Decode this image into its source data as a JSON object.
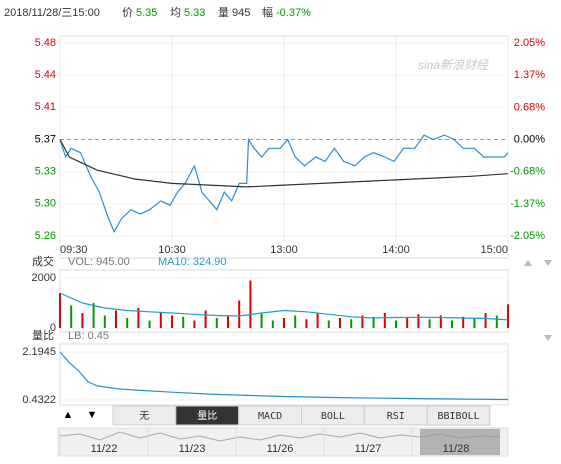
{
  "header": {
    "datetime": "2018/11/28/三15:00",
    "price_label": "价",
    "price": 5.35,
    "avg_label": "均",
    "avg": 5.33,
    "volume_label": "量",
    "volume": 945,
    "amplitude_label": "幅",
    "amplitude": "-0.37%"
  },
  "watermark": "sina新浪财经",
  "chart_data": [
    {
      "type": "line",
      "xlim": [
        0,
        240
      ],
      "xticks": [
        {
          "value": 0,
          "label": "09:30"
        },
        {
          "value": 60,
          "label": "10:30"
        },
        {
          "value": 120,
          "label": "13:00"
        },
        {
          "value": 180,
          "label": "14:00"
        },
        {
          "value": 240,
          "label": "15:00"
        }
      ],
      "ylim": [
        5.26,
        5.48
      ],
      "yticks": [
        5.48,
        {
          "value": 5.4433,
          "label": "5.44"
        },
        {
          "value": 5.4067,
          "label": "5.41"
        },
        5.37,
        {
          "value": 5.3333,
          "label": "5.33"
        },
        {
          "value": 5.2967,
          "label": "5.30"
        },
        5.26
      ],
      "y2lim": [
        -2.05,
        2.05
      ],
      "y2ticks": [
        {
          "value": 2.05,
          "label": "2.05%"
        },
        {
          "value": 1.37,
          "label": "1.37%"
        },
        {
          "value": 0.68,
          "label": "0.68%"
        },
        {
          "value": 0,
          "label": "0.00%"
        },
        {
          "value": -0.68,
          "label": "-0.68%"
        },
        {
          "value": -1.37,
          "label": "-1.37%"
        },
        {
          "value": -2.05,
          "label": "-2.05%"
        }
      ],
      "up_color": "#e00000",
      "down_color": "#009900",
      "flat_color": "#000000",
      "series": [
        {
          "color": "#2a8fd0",
          "x": [
            0,
            3,
            6,
            11,
            16,
            21,
            26,
            29,
            33,
            38,
            43,
            48,
            54,
            59,
            63,
            67,
            72,
            76,
            80,
            84,
            88,
            92,
            96,
            100,
            101,
            104,
            108,
            112,
            118,
            122,
            126,
            131,
            137,
            142,
            147,
            152,
            158,
            163,
            168,
            174,
            179,
            184,
            190,
            195,
            200,
            206,
            211,
            216,
            222,
            227,
            232,
            238,
            240
          ],
          "values": [
            5.37,
            5.35,
            5.36,
            5.355,
            5.33,
            5.31,
            5.28,
            5.265,
            5.28,
            5.29,
            5.285,
            5.29,
            5.3,
            5.295,
            5.31,
            5.32,
            5.34,
            5.31,
            5.3,
            5.29,
            5.31,
            5.3,
            5.32,
            5.32,
            5.37,
            5.36,
            5.35,
            5.36,
            5.36,
            5.37,
            5.35,
            5.34,
            5.35,
            5.345,
            5.36,
            5.345,
            5.34,
            5.35,
            5.355,
            5.35,
            5.345,
            5.36,
            5.36,
            5.375,
            5.37,
            5.375,
            5.37,
            5.36,
            5.36,
            5.35,
            5.35,
            5.35,
            5.355
          ]
        },
        {
          "color": "#333333",
          "x": [
            0,
            5,
            10,
            20,
            40,
            60,
            80,
            100,
            120,
            140,
            160,
            180,
            200,
            220,
            240
          ],
          "values": [
            5.37,
            5.35,
            5.345,
            5.335,
            5.325,
            5.32,
            5.318,
            5.316,
            5.318,
            5.32,
            5.322,
            5.324,
            5.326,
            5.328,
            5.331
          ]
        }
      ]
    },
    {
      "type": "bar",
      "title": "成交",
      "annotations": [
        "VOL: 945.00",
        "MA10: 324.90"
      ],
      "ylim": [
        0,
        2000
      ],
      "yticks": [
        0,
        2000
      ],
      "series": [
        {
          "type": "bar",
          "x": [
            0,
            6,
            12,
            18,
            24,
            30,
            36,
            42,
            48,
            54,
            60,
            66,
            72,
            78,
            84,
            90,
            96,
            102,
            108,
            114,
            120,
            126,
            132,
            138,
            144,
            150,
            156,
            162,
            168,
            174,
            180,
            186,
            192,
            198,
            204,
            210,
            216,
            222,
            228,
            234,
            240
          ],
          "values": [
            1400,
            900,
            600,
            1000,
            500,
            700,
            400,
            800,
            300,
            600,
            500,
            450,
            300,
            700,
            400,
            500,
            1100,
            1900,
            600,
            300,
            400,
            500,
            350,
            600,
            300,
            400,
            350,
            500,
            450,
            600,
            300,
            400,
            550,
            350,
            500,
            300,
            450,
            400,
            600,
            500,
            945
          ],
          "colors": [
            "#e00000",
            "#009900",
            "#e00000",
            "#009900",
            "#009900",
            "#e00000",
            "#009900",
            "#e00000",
            "#009900",
            "#e00000",
            "#e00000",
            "#009900",
            "#e00000",
            "#e00000",
            "#009900",
            "#e00000",
            "#e00000",
            "#e00000",
            "#009900",
            "#009900",
            "#e00000",
            "#009900",
            "#e00000",
            "#e00000",
            "#009900",
            "#e00000",
            "#009900",
            "#e00000",
            "#009900",
            "#e00000",
            "#009900",
            "#e00000",
            "#e00000",
            "#009900",
            "#e00000",
            "#009900",
            "#e00000",
            "#009900",
            "#e00000",
            "#009900",
            "#e00000"
          ]
        },
        {
          "type": "line",
          "color": "#1aa0c8",
          "x": [
            0,
            12,
            24,
            36,
            48,
            60,
            72,
            84,
            96,
            108,
            120,
            132,
            144,
            156,
            168,
            180,
            192,
            204,
            216,
            228,
            240
          ],
          "values": [
            1400,
            1000,
            800,
            700,
            650,
            600,
            550,
            500,
            480,
            600,
            700,
            650,
            550,
            450,
            400,
            420,
            430,
            420,
            400,
            380,
            324.9
          ]
        }
      ]
    },
    {
      "type": "line",
      "title": "量比",
      "annotations": [
        "LB: 0.45"
      ],
      "ylim": [
        0.4322,
        2.1945
      ],
      "yticks": [
        0.4322,
        2.1945
      ],
      "series": [
        {
          "color": "#2a8fd0",
          "x": [
            0,
            5,
            10,
            15,
            20,
            30,
            40,
            60,
            80,
            100,
            120,
            150,
            180,
            210,
            240
          ],
          "values": [
            2.1945,
            1.8,
            1.5,
            1.1,
            0.95,
            0.85,
            0.8,
            0.72,
            0.65,
            0.6,
            0.56,
            0.52,
            0.49,
            0.47,
            0.45
          ]
        }
      ]
    }
  ],
  "toolbar": {
    "up": "▲",
    "down": "▼",
    "tabs": [
      "无",
      "量比",
      "MACD",
      "BOLL",
      "RSI",
      "BBIBOLL"
    ],
    "active": 1
  },
  "timeline": {
    "dates": [
      "11/22",
      "11/23",
      "11/26",
      "11/27",
      "11/28"
    ],
    "selected": 4
  }
}
